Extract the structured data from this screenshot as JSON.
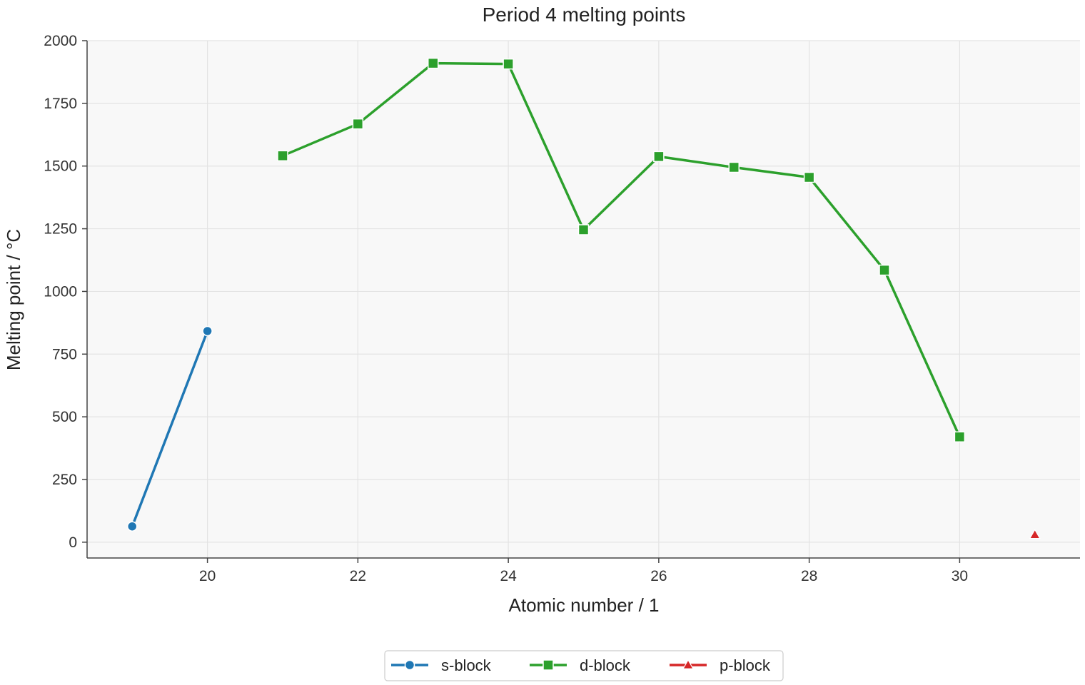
{
  "chart_data": {
    "type": "line",
    "title": "Period 4 melting points",
    "xlabel": "Atomic number / 1",
    "ylabel": "Melting point / °C",
    "xlim": [
      18.4,
      31.6
    ],
    "ylim": [
      -63,
      2000
    ],
    "x_ticks": [
      20,
      22,
      24,
      26,
      28,
      30
    ],
    "y_ticks": [
      0,
      250,
      500,
      750,
      1000,
      1250,
      1500,
      1750,
      2000
    ],
    "grid": true,
    "legend": "bottom-center",
    "series": [
      {
        "name": "s-block",
        "color": "#1f77b4",
        "marker": "circle",
        "points": [
          {
            "x": 19,
            "y": 63
          },
          {
            "x": 20,
            "y": 842
          }
        ]
      },
      {
        "name": "d-block",
        "color": "#2ca02c",
        "marker": "square",
        "points": [
          {
            "x": 21,
            "y": 1541
          },
          {
            "x": 22,
            "y": 1668
          },
          {
            "x": 23,
            "y": 1910
          },
          {
            "x": 24,
            "y": 1907
          },
          {
            "x": 25,
            "y": 1246
          },
          {
            "x": 26,
            "y": 1538
          },
          {
            "x": 27,
            "y": 1495
          },
          {
            "x": 28,
            "y": 1455
          },
          {
            "x": 29,
            "y": 1085
          },
          {
            "x": 30,
            "y": 420
          }
        ]
      },
      {
        "name": "p-block",
        "color": "#d62728",
        "marker": "triangle",
        "points": [
          {
            "x": 31,
            "y": 30
          }
        ]
      }
    ]
  }
}
